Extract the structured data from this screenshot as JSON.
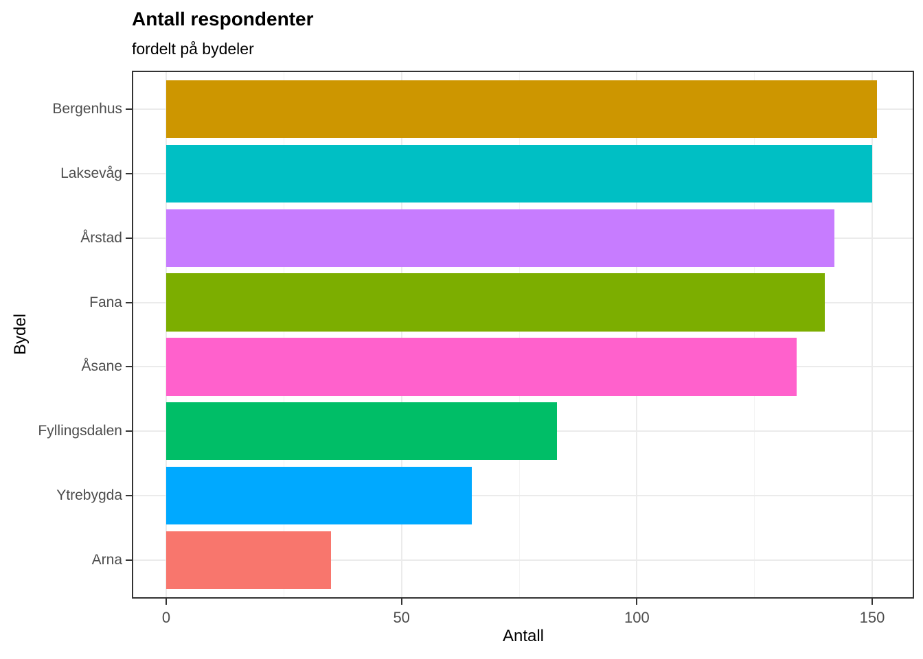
{
  "chart_data": {
    "type": "bar",
    "orientation": "horizontal",
    "title": "Antall respondenter",
    "subtitle": "fordelt på bydeler",
    "xlabel": "Antall",
    "ylabel": "Bydel",
    "categories": [
      "Bergenhus",
      "Laksevåg",
      "Årstad",
      "Fana",
      "Åsane",
      "Fyllingsdalen",
      "Ytrebygda",
      "Arna"
    ],
    "values": [
      151,
      150,
      142,
      140,
      134,
      83,
      65,
      35
    ],
    "bar_colors": [
      "#CD9600",
      "#00BFC4",
      "#C77CFF",
      "#7CAE00",
      "#FF61CC",
      "#00BE67",
      "#00A9FF",
      "#F8766D"
    ],
    "x_ticks": [
      0,
      50,
      100,
      150
    ],
    "x_minor_ticks": [
      25,
      75,
      125
    ],
    "xlim": [
      -7.3,
      158.9
    ],
    "bar_width_fraction": 0.9,
    "grid": true,
    "legend": "none",
    "colors": {
      "grid_major": "#ebebeb",
      "grid_minor": "#f3f3f3",
      "panel_border": "#333333",
      "tick_mark": "#333333",
      "tick_label": "#4d4d4d",
      "text": "#000000",
      "background": "#ffffff"
    }
  }
}
